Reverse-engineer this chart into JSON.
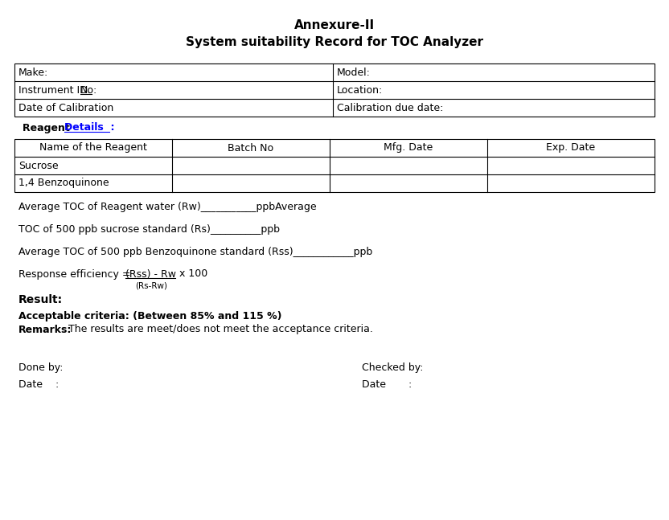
{
  "title1": "Annexure-II",
  "title2": "System suitability Record for TOC Analyzer",
  "bg_color": "#ffffff",
  "text_color": "#000000",
  "table1_rows": [
    [
      "Make:",
      "Model:"
    ],
    [
      "Instrument ID. No:",
      "Location:"
    ],
    [
      "Date of Calibration",
      "Calibration due date:"
    ]
  ],
  "table2_headers": [
    "Name of the Reagent",
    "Batch No",
    "Mfg. Date",
    "Exp. Date"
  ],
  "table2_rows": [
    [
      "Sucrose",
      "",
      "",
      ""
    ],
    [
      "1,4 Benzoquinone",
      "",
      "",
      ""
    ]
  ],
  "line1": "Average TOC of Reagent water (Rw)___________ppbAverage",
  "line2": "TOC of 500 ppb sucrose standard (Rs)__________ppb",
  "line3": "Average TOC of 500 ppb Benzoquinone standard (Rss)____________ppb",
  "line4a_pre": "Response efficiency = ",
  "line4a_over": "(Rss) - Rw",
  "line4a_post": " x 100",
  "line4b": "(Rs-Rw)",
  "result_label": "Result:",
  "acceptable": "Acceptable criteria: (Between 85% and 115 %)",
  "remarks_bold": "Remarks:",
  "remarks_normal": " The results are meet/does not meet the acceptance criteria.",
  "done_by": "Done by:",
  "checked_by": "Checked by:",
  "date_left": "Date    :",
  "date_right": "Date       :"
}
